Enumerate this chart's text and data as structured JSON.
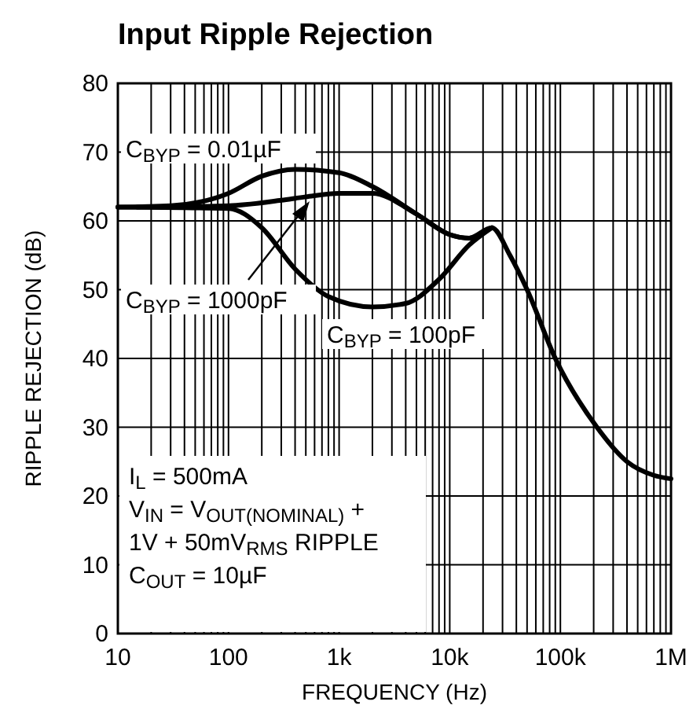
{
  "chart_data": {
    "type": "line",
    "title": "Input Ripple Rejection",
    "xlabel": "FREQUENCY (Hz)",
    "ylabel": "RIPPLE REJECTION (dB)",
    "log": "x",
    "grid": true,
    "line_style": "solid",
    "xlim": [
      10,
      1000000
    ],
    "xticks": [
      10,
      100,
      {
        "value": 1000,
        "label": "1k"
      },
      {
        "value": 10000,
        "label": "10k"
      },
      {
        "value": 100000,
        "label": "100k"
      },
      {
        "value": 1000000,
        "label": "1M"
      }
    ],
    "ylim": [
      0,
      80
    ],
    "yticks": [
      0,
      10,
      20,
      30,
      40,
      50,
      60,
      70,
      80
    ],
    "series": [
      {
        "name": "C$_{BYP}$ = 0.01µF",
        "color": "#000000",
        "x": [
          10,
          30,
          100,
          200,
          400,
          1000,
          2000,
          5000,
          10000,
          15000,
          24000,
          35000,
          50000,
          90000,
          214000,
          400000,
          700000,
          1000000
        ],
        "values": [
          62,
          62.2,
          64,
          66.5,
          67.5,
          67,
          65,
          61,
          58,
          57.5,
          59,
          55,
          50,
          40,
          30,
          25,
          23,
          22.5
        ]
      },
      {
        "name": "C$_{BYP}$ = 1000pF",
        "color": "#000000",
        "x": [
          15,
          100,
          300,
          500,
          1000,
          2000,
          5000,
          10000,
          15000,
          21000
        ],
        "values": [
          62,
          62.2,
          63,
          63.5,
          64,
          64,
          61,
          58,
          57.5,
          58.6
        ]
      },
      {
        "name": "C$_{BYP}$ = 100pF",
        "color": "#000000",
        "x": [
          10,
          100,
          200,
          400,
          800,
          2000,
          4000,
          8000,
          15000,
          24000
        ],
        "values": [
          62,
          61.8,
          59,
          53,
          49,
          47.5,
          48,
          51.5,
          56.5,
          59
        ]
      }
    ],
    "annotations": [
      "I$_{L}$ = 500mA\nV$_{IN}$ = V$_{OUT(NOMINAL)}$ +\n1V + 50mV$_{RMS}$ RIPPLE\nC$_{OUT}$ = 10µF"
    ]
  }
}
